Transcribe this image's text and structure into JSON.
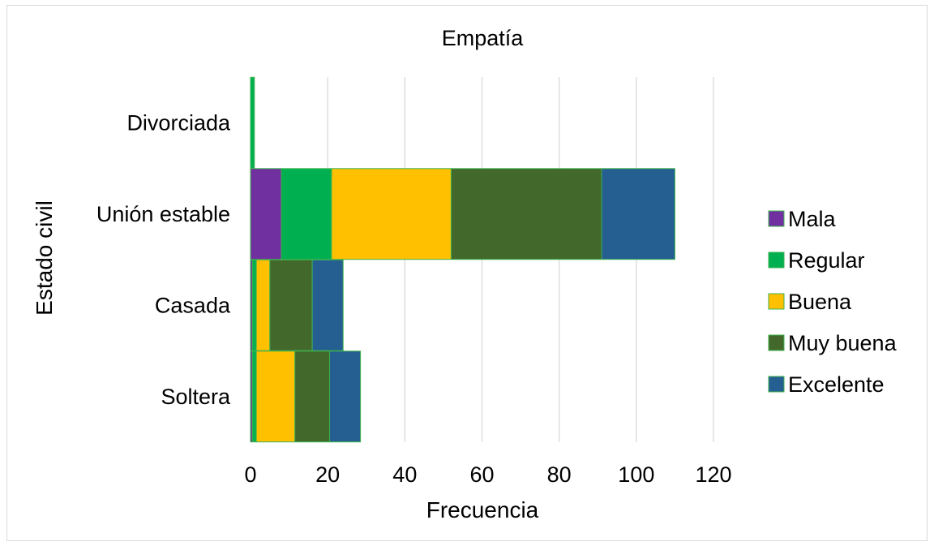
{
  "chart_data": {
    "type": "bar",
    "orientation": "horizontal",
    "stacked": true,
    "title": "Empatía",
    "xlabel": "Frecuencia",
    "ylabel": "Estado civil",
    "xlim": [
      0,
      120
    ],
    "xticks": [
      0,
      20,
      40,
      60,
      80,
      100,
      120
    ],
    "grid": "vertical",
    "legend_position": "right",
    "categories": [
      "Divorciada",
      "Unión estable",
      "Casada",
      "Soltera"
    ],
    "series": [
      {
        "name": "Mala",
        "color": "#7030A0",
        "values": [
          0,
          8,
          0.5,
          0.5
        ]
      },
      {
        "name": "Regular",
        "color": "#00B050",
        "values": [
          1,
          13,
          1,
          1
        ]
      },
      {
        "name": "Buena",
        "color": "#FFC000",
        "values": [
          0,
          31,
          3.5,
          10
        ]
      },
      {
        "name": "Muy buena",
        "color": "#43682B",
        "values": [
          0,
          39,
          11,
          9
        ]
      },
      {
        "name": "Excelente",
        "color": "#255E91",
        "values": [
          0,
          19,
          8,
          8
        ]
      }
    ]
  }
}
